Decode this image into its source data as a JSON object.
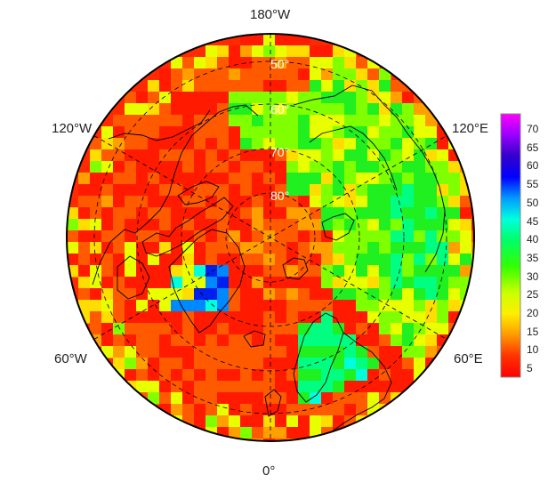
{
  "map": {
    "projection": "north polar stereographic",
    "longitude_labels": {
      "top": "180°W",
      "bottom": "0°",
      "upper_left": "120°W",
      "upper_right": "120°E",
      "lower_left": "60°W",
      "lower_right": "60°E"
    },
    "latitude_labels": [
      "50°",
      "60°",
      "70°",
      "80°"
    ],
    "land_outline_color": "#000000",
    "graticule_style": "dashed"
  },
  "colorbar": {
    "ticks": [
      "70",
      "65",
      "60",
      "55",
      "50",
      "45",
      "40",
      "35",
      "30",
      "25",
      "20",
      "15",
      "10",
      "5"
    ],
    "range": [
      0,
      75
    ],
    "colors": [
      "#ff0000",
      "#ff6000",
      "#ffcc00",
      "#ffff00",
      "#80ff00",
      "#00ff00",
      "#00ff99",
      "#00ffff",
      "#0066ff",
      "#0000ff",
      "#6600cc",
      "#cc00ff",
      "#ff00ff"
    ]
  }
}
